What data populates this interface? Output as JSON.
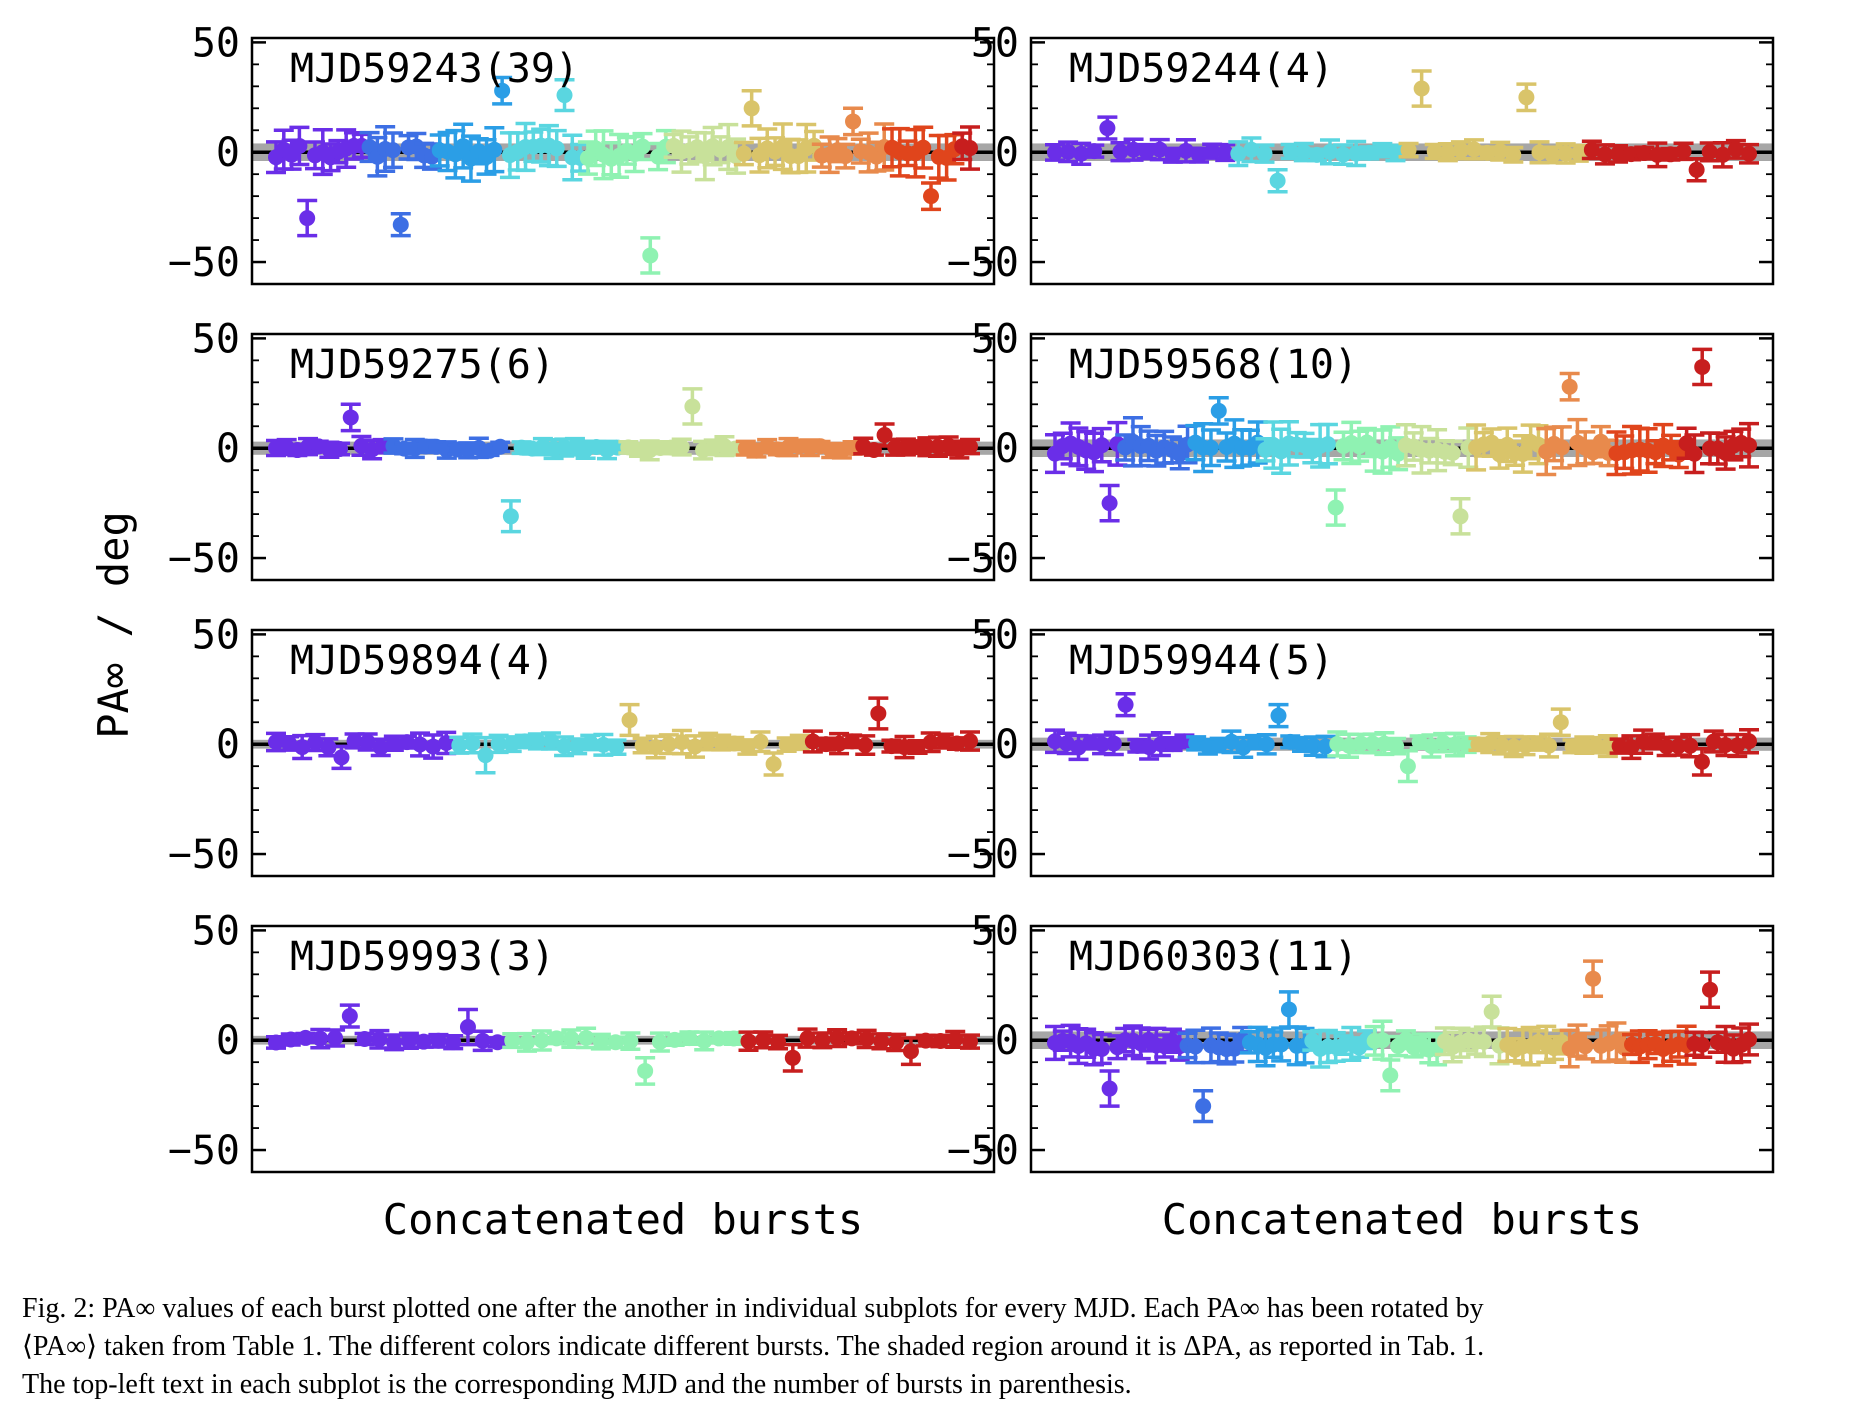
{
  "figure": {
    "ylabel": "PA∞ / deg",
    "xlabel": "Concatenated bursts"
  },
  "colors": {
    "zero_line": "#000000",
    "shaded_band": "#a6a6a6",
    "palette": [
      "#6a2ee8",
      "#3d6fe4",
      "#2b9ee6",
      "#5ad6e0",
      "#8ff2b2",
      "#c8e19a",
      "#d9c46a",
      "#e88a4c",
      "#e0451c",
      "#c71e1e"
    ]
  },
  "chart_data": [
    {
      "type": "scatter",
      "panel": "MJD59243",
      "label": "MJD59243(39)",
      "mjd": "MJD59243",
      "n_bursts": 39,
      "ylim": [
        -60,
        52
      ],
      "yticks": [
        "50",
        "0",
        "−50"
      ],
      "xlabel": "",
      "zero_line": 0,
      "band_halfwidth": 4,
      "summary": {
        "typical_value": 0,
        "typical_error": 10,
        "min_value": -47,
        "max_value": 33
      },
      "highlights": [
        {
          "value": -30,
          "err": 8
        },
        {
          "value": -33,
          "err": 5
        },
        {
          "value": 28,
          "err": 6
        },
        {
          "value": 26,
          "err": 7
        },
        {
          "value": -47,
          "err": 8
        },
        {
          "value": 20,
          "err": 8
        },
        {
          "value": 14,
          "err": 6
        },
        {
          "value": -20,
          "err": 6
        }
      ]
    },
    {
      "type": "scatter",
      "panel": "MJD59244",
      "label": "MJD59244(4)",
      "mjd": "MJD59244",
      "n_bursts": 4,
      "ylim": [
        -60,
        52
      ],
      "yticks": [
        "50",
        "0",
        "−50"
      ],
      "xlabel": "",
      "zero_line": 0,
      "band_halfwidth": 4,
      "summary": {
        "typical_value": 0,
        "typical_error": 5,
        "min_value": -15,
        "max_value": 29
      },
      "highlights": [
        {
          "value": 11,
          "err": 5
        },
        {
          "value": -13,
          "err": 5
        },
        {
          "value": 29,
          "err": 8
        },
        {
          "value": 25,
          "err": 6
        },
        {
          "value": -8,
          "err": 5
        }
      ]
    },
    {
      "type": "scatter",
      "panel": "MJD59275",
      "label": "MJD59275(6)",
      "mjd": "MJD59275",
      "n_bursts": 6,
      "ylim": [
        -60,
        52
      ],
      "yticks": [
        "50",
        "0",
        "−50"
      ],
      "xlabel": "",
      "zero_line": 0,
      "band_halfwidth": 3,
      "summary": {
        "typical_value": 0,
        "typical_error": 4,
        "min_value": -31,
        "max_value": 19
      },
      "highlights": [
        {
          "value": 14,
          "err": 6
        },
        {
          "value": -31,
          "err": 7
        },
        {
          "value": 19,
          "err": 8
        },
        {
          "value": 6,
          "err": 5
        }
      ]
    },
    {
      "type": "scatter",
      "panel": "MJD59568",
      "label": "MJD59568(10)",
      "mjd": "MJD59568",
      "n_bursts": 10,
      "ylim": [
        -60,
        52
      ],
      "yticks": [
        "50",
        "0",
        "−50"
      ],
      "xlabel": "",
      "zero_line": 0,
      "band_halfwidth": 4,
      "summary": {
        "typical_value": 0,
        "typical_error": 10,
        "min_value": -31,
        "max_value": 37
      },
      "highlights": [
        {
          "value": -25,
          "err": 8
        },
        {
          "value": 17,
          "err": 6
        },
        {
          "value": -27,
          "err": 8
        },
        {
          "value": -31,
          "err": 8
        },
        {
          "value": 28,
          "err": 6
        },
        {
          "value": 37,
          "err": 8
        }
      ]
    },
    {
      "type": "scatter",
      "panel": "MJD59894",
      "label": "MJD59894(4)",
      "mjd": "MJD59894",
      "n_bursts": 4,
      "ylim": [
        -60,
        52
      ],
      "yticks": [
        "50",
        "0",
        "−50"
      ],
      "xlabel": "",
      "zero_line": 0,
      "band_halfwidth": 2,
      "summary": {
        "typical_value": 0,
        "typical_error": 5,
        "min_value": -9,
        "max_value": 14
      },
      "highlights": [
        {
          "value": -6,
          "err": 5
        },
        {
          "value": -5,
          "err": 8
        },
        {
          "value": 11,
          "err": 7
        },
        {
          "value": -9,
          "err": 5
        },
        {
          "value": 14,
          "err": 7
        }
      ]
    },
    {
      "type": "scatter",
      "panel": "MJD59944",
      "label": "MJD59944(5)",
      "mjd": "MJD59944",
      "n_bursts": 5,
      "ylim": [
        -60,
        52
      ],
      "yticks": [
        "50",
        "0",
        "−50"
      ],
      "xlabel": "",
      "zero_line": 0,
      "band_halfwidth": 3,
      "summary": {
        "typical_value": 0,
        "typical_error": 5,
        "min_value": -10,
        "max_value": 20
      },
      "highlights": [
        {
          "value": 18,
          "err": 5
        },
        {
          "value": 13,
          "err": 5
        },
        {
          "value": -10,
          "err": 7
        },
        {
          "value": 10,
          "err": 6
        },
        {
          "value": -8,
          "err": 6
        }
      ]
    },
    {
      "type": "scatter",
      "panel": "MJD59993",
      "label": "MJD59993(3)",
      "mjd": "MJD59993",
      "n_bursts": 3,
      "ylim": [
        -60,
        52
      ],
      "yticks": [
        "50",
        "0",
        "−50"
      ],
      "xlabel": "Concatenated bursts",
      "zero_line": 0,
      "band_halfwidth": 2,
      "summary": {
        "typical_value": 0,
        "typical_error": 4,
        "min_value": -15,
        "max_value": 12
      },
      "highlights": [
        {
          "value": 11,
          "err": 5
        },
        {
          "value": 6,
          "err": 8
        },
        {
          "value": -14,
          "err": 6
        },
        {
          "value": -8,
          "err": 6
        },
        {
          "value": -5,
          "err": 6
        }
      ]
    },
    {
      "type": "scatter",
      "panel": "MJD60303",
      "label": "MJD60303(11)",
      "mjd": "MJD60303",
      "n_bursts": 11,
      "ylim": [
        -60,
        52
      ],
      "yticks": [
        "50",
        "0",
        "−50"
      ],
      "xlabel": "Concatenated bursts",
      "zero_line": 0,
      "band_halfwidth": 4,
      "summary": {
        "typical_value": -2,
        "typical_error": 8,
        "min_value": -32,
        "max_value": 28
      },
      "highlights": [
        {
          "value": -22,
          "err": 8
        },
        {
          "value": -30,
          "err": 7
        },
        {
          "value": 14,
          "err": 8
        },
        {
          "value": -16,
          "err": 7
        },
        {
          "value": 13,
          "err": 7
        },
        {
          "value": 28,
          "err": 8
        },
        {
          "value": 23,
          "err": 8
        }
      ]
    }
  ],
  "caption": {
    "line1": "Fig. 2: PA∞ values of each burst plotted one after the another in individual subplots for every MJD. Each PA∞ has been rotated by",
    "line2": "⟨PA∞⟩ taken from Table 1. The different colors indicate different bursts. The shaded region around it is ΔPA, as reported in Tab. 1.",
    "line3": "The top-left text in each subplot is the corresponding MJD and the number of bursts in parenthesis."
  }
}
